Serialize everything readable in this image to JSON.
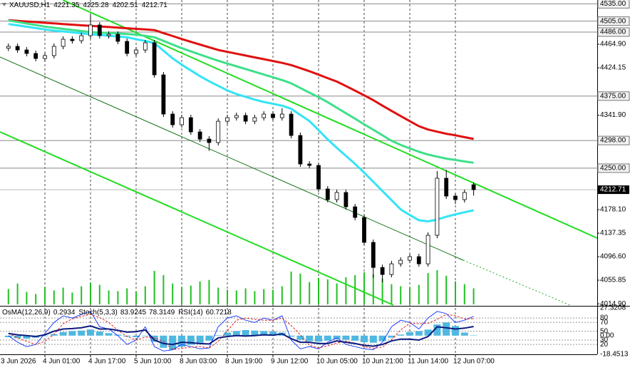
{
  "chart_data": {
    "type": "candlestick",
    "symbol": "XAUUSD,H1",
    "categories": [
      "3 Jun 2026",
      null,
      null,
      null,
      "4 Jun 01:00",
      null,
      null,
      null,
      null,
      "4 Jun 17:00",
      null,
      null,
      null,
      null,
      "5 Jun 10:00",
      null,
      null,
      null,
      null,
      "8 Jun 03:00",
      null,
      null,
      null,
      null,
      "8 Jun 19:00",
      null,
      null,
      null,
      null,
      "9 Jun 12:00",
      null,
      null,
      null,
      null,
      "10 Jun 05:00",
      null,
      null,
      null,
      null,
      "10 Jun 21:00",
      null,
      null,
      null,
      null,
      "11 Jun 14:00",
      null,
      null,
      null,
      null,
      "12 Jun 07:00",
      null,
      null
    ],
    "open": [
      4458.0,
      4461.2,
      4455.0,
      4448.9,
      4440.2,
      4445.2,
      4461.2,
      4473.6,
      4471.1,
      4479.8,
      4498.3,
      4479.8,
      4482.2,
      4469.9,
      4448.9,
      4455.0,
      4467.4,
      4411.8,
      4343.8,
      4325.3,
      4337.6,
      4312.9,
      4300.5,
      4294.4,
      4331.4,
      4337.6,
      4341.4,
      4331.4,
      4337.6,
      4343.8,
      4337.6,
      4343.8,
      4306.7,
      4257.3,
      4254.8,
      4214.0,
      4195.5,
      4207.9,
      4183.1,
      4164.6,
      4121.4,
      4077.9,
      4065.7,
      4084.2,
      4090.4,
      4096.6,
      4084.2,
      4133.7,
      4232.6,
      4201.7,
      4195.5,
      4221.35
    ],
    "high": [
      4466.2,
      4466.2,
      4460.0,
      4453.9,
      4450.2,
      4466.2,
      4478.6,
      4478.6,
      4484.8,
      4516.0,
      4503.3,
      4487.2,
      4487.2,
      4474.9,
      4460.0,
      4472.4,
      4472.4,
      4416.8,
      4348.8,
      4342.6,
      4342.6,
      4317.9,
      4305.5,
      4336.4,
      4342.6,
      4346.4,
      4346.4,
      4342.6,
      4348.8,
      4348.8,
      4354.0,
      4348.8,
      4311.7,
      4262.3,
      4259.8,
      4219.0,
      4212.9,
      4212.9,
      4188.1,
      4169.6,
      4126.4,
      4082.9,
      4089.2,
      4095.4,
      4101.6,
      4101.6,
      4138.7,
      4245.0,
      4247.0,
      4206.7,
      4212.9,
      4225.28
    ],
    "low": [
      4453.0,
      4450.0,
      4443.9,
      4435.2,
      4435.2,
      4440.2,
      4456.2,
      4466.1,
      4466.1,
      4474.8,
      4474.8,
      4474.8,
      4464.9,
      4443.9,
      4443.9,
      4450.0,
      4406.8,
      4338.8,
      4320.3,
      4320.3,
      4307.9,
      4295.5,
      4280.0,
      4289.4,
      4326.4,
      4332.6,
      4326.4,
      4326.4,
      4332.6,
      4332.6,
      4332.6,
      4301.7,
      4252.3,
      4249.8,
      4209.0,
      4190.5,
      4190.5,
      4178.1,
      4159.6,
      4116.4,
      4060.0,
      4052.0,
      4060.7,
      4079.2,
      4085.4,
      4079.2,
      4079.2,
      4128.7,
      4196.7,
      4188.0,
      4190.5,
      4202.51
    ],
    "close": [
      4461.2,
      4455.0,
      4448.9,
      4440.2,
      4445.2,
      4461.2,
      4473.6,
      4471.1,
      4479.8,
      4498.3,
      4479.8,
      4482.2,
      4469.9,
      4448.9,
      4455.0,
      4467.4,
      4411.8,
      4343.8,
      4325.3,
      4337.6,
      4312.9,
      4300.5,
      4294.4,
      4331.4,
      4337.6,
      4341.4,
      4331.4,
      4337.6,
      4343.8,
      4337.6,
      4343.8,
      4306.7,
      4257.3,
      4254.8,
      4214.0,
      4195.5,
      4207.9,
      4183.1,
      4164.6,
      4121.4,
      4077.9,
      4065.7,
      4084.2,
      4090.4,
      4096.6,
      4084.2,
      4133.7,
      4232.6,
      4201.7,
      4195.5,
      4207.9,
      4212.71
    ],
    "ylim": [
      4012.6,
      4541.6
    ],
    "yticks": [
      {
        "value": 4464.9,
        "label": "4464.90"
      },
      4424.15,
      {
        "value": 4341.9,
        "label": "4341.90"
      },
      {
        "value": 4178.1,
        "label": "4178.10"
      },
      4137.35,
      {
        "value": 4096.6,
        "label": "4096.60"
      },
      4055.85,
      {
        "value": 4014.9,
        "label": "4014.90"
      }
    ],
    "levels": [
      {
        "value": 4535,
        "label": "4535.00"
      },
      {
        "value": 4505,
        "label": "4505.00"
      },
      {
        "value": 4486,
        "label": "4486.00"
      },
      {
        "value": 4375,
        "label": "4375.00"
      },
      {
        "value": 4298,
        "label": "4298.00"
      },
      {
        "value": 4250,
        "label": "4250.00"
      }
    ],
    "grid": true,
    "moving_averages": [
      {
        "color": "#e01010",
        "values": [
          4506.6,
          4505.5,
          4504.4,
          4503.3,
          4502.1,
          4501.0,
          4499.9,
          4498.8,
          4497.7,
          4496.7,
          4495.7,
          4494.7,
          4493.7,
          4492.6,
          4491.6,
          4490.7,
          4489.5,
          4484.3,
          4479.2,
          4474.0,
          4469.1,
          4464.3,
          4459.6,
          4454.9,
          4451.7,
          4448.5,
          4445.3,
          4442.1,
          4439.0,
          4435.8,
          4432.6,
          4428.7,
          4423.4,
          4418.1,
          4412.2,
          4406.1,
          4400.2,
          4392.4,
          4384.5,
          4376.4,
          4367.9,
          4358.4,
          4349.3,
          4340.4,
          4331.6,
          4322.8,
          4317.0,
          4313.3,
          4309.7,
          4307.0,
          4303.8,
          4300.7
        ]
      },
      {
        "color": "#3de08a",
        "values": [
          4506.1,
          4503.5,
          4500.8,
          4498.2,
          4495.5,
          4493.4,
          4491.5,
          4489.7,
          4487.8,
          4486.0,
          4485.1,
          4484.3,
          4483.6,
          4482.7,
          4481.5,
          4479.4,
          4477.1,
          4470.8,
          4464.3,
          4458.0,
          4452.5,
          4447.0,
          4441.6,
          4436.3,
          4431.4,
          4426.6,
          4421.9,
          4417.1,
          4412.3,
          4407.6,
          4402.8,
          4397.1,
          4389.1,
          4381.0,
          4373.1,
          4364.5,
          4354.9,
          4345.3,
          4335.8,
          4326.1,
          4316.6,
          4307.1,
          4297.5,
          4290.3,
          4284.4,
          4278.4,
          4273.7,
          4270.0,
          4266.6,
          4264.2,
          4261.7,
          4259.4
        ]
      },
      {
        "color": "#33e4f6",
        "values": [
          4500.0,
          4497.7,
          4495.2,
          4492.9,
          4490.5,
          4488.4,
          4487.1,
          4485.5,
          4483.9,
          4482.2,
          4481.0,
          4479.7,
          4478.4,
          4476.9,
          4473.6,
          4470.5,
          4467.0,
          4453.7,
          4440.5,
          4429.5,
          4419.5,
          4409.6,
          4400.8,
          4392.8,
          4384.9,
          4378.4,
          4373.7,
          4368.9,
          4364.8,
          4361.6,
          4358.4,
          4353.0,
          4342.3,
          4331.7,
          4315.9,
          4299.9,
          4285.2,
          4271.4,
          4257.4,
          4242.3,
          4226.4,
          4210.5,
          4194.5,
          4178.6,
          4168.8,
          4159.8,
          4157.8,
          4160.9,
          4165.8,
          4170.0,
          4173.7,
          4177.0
        ]
      }
    ],
    "volume": {
      "color": "#22c022",
      "values": [
        2200,
        3000,
        1800,
        1500,
        2500,
        2000,
        2400,
        1700,
        2600,
        3100,
        2800,
        2000,
        1900,
        2300,
        1800,
        2600,
        4800,
        4200,
        3000,
        2500,
        2700,
        3300,
        3500,
        2400,
        2100,
        2000,
        2300,
        1900,
        2200,
        2100,
        2600,
        4700,
        4400,
        3200,
        3800,
        3600,
        3000,
        3900,
        4200,
        4600,
        4300,
        3700,
        2900,
        2600,
        2400,
        2800,
        4500,
        4900,
        4100,
        3300,
        2900,
        2300
      ]
    },
    "indicator": {
      "ylim": [
        -18.4513,
        27.3208
      ],
      "yticks": [
        27.3208,
        {
          "value": 0,
          "label": "0.00"
        },
        -18.4513
      ],
      "y2lim": [
        -2.4,
        102.8
      ],
      "y2ticks": [
        80,
        70,
        50,
        30,
        20
      ],
      "series": [
        {
          "name": "OsMA(12,26,9)",
          "type": "bar",
          "color": "#4fb8e0",
          "values": [
            -1.5,
            -2.5,
            -3.0,
            -2.0,
            -0.5,
            1.5,
            3.5,
            4.5,
            5.0,
            6.0,
            4.0,
            2.5,
            1.0,
            -1.0,
            -1.5,
            -0.5,
            -6.0,
            -12.0,
            -14.0,
            -11.0,
            -9.0,
            -7.0,
            -5.0,
            0.5,
            3.0,
            4.5,
            5.5,
            5.0,
            4.5,
            4.0,
            3.0,
            -1.0,
            -4.0,
            -5.5,
            -6.0,
            -5.0,
            -3.5,
            -4.0,
            -5.0,
            -6.5,
            -7.0,
            -5.5,
            -2.0,
            1.0,
            3.5,
            4.5,
            6.0,
            11.0,
            13.0,
            9.5,
            3.0,
            0.2934
          ]
        },
        {
          "name": "Stoch(5,3,3)",
          "type": "line",
          "axis": "y2",
          "color": "#2040ff",
          "values": [
            40,
            25,
            15,
            20,
            45,
            70,
            85,
            80,
            88,
            95,
            60,
            55,
            40,
            20,
            30,
            60,
            15,
            5,
            8,
            20,
            15,
            10,
            12,
            60,
            80,
            85,
            75,
            70,
            80,
            75,
            85,
            30,
            10,
            15,
            10,
            25,
            35,
            20,
            15,
            10,
            8,
            25,
            60,
            75,
            70,
            55,
            80,
            95,
            90,
            70,
            75,
            83.9245
          ]
        },
        {
          "type": "line",
          "axis": "y2",
          "color": "#e02020",
          "dashed": true,
          "values": [
            45,
            35,
            27,
            20,
            27,
            43,
            67,
            78,
            84,
            88,
            81,
            70,
            52,
            38,
            30,
            37,
            35,
            27,
            9,
            11,
            14,
            15,
            12,
            27,
            51,
            75,
            80,
            77,
            75,
            75,
            80,
            63,
            42,
            18,
            12,
            17,
            23,
            27,
            23,
            15,
            11,
            14,
            31,
            53,
            68,
            67,
            68,
            77,
            88,
            85,
            78,
            78.3149
          ]
        },
        {
          "name": "RSI(14)",
          "type": "line",
          "axis": "y2",
          "color": "#0d1a7e",
          "width": 2,
          "values": [
            45,
            42,
            40,
            38,
            42,
            50,
            55,
            56,
            58,
            62,
            55,
            55,
            52,
            48,
            49,
            53,
            30,
            22,
            20,
            25,
            24,
            22,
            21,
            35,
            38,
            40,
            39,
            40,
            42,
            41,
            44,
            33,
            25,
            25,
            22,
            22,
            28,
            25,
            22,
            18,
            16,
            20,
            28,
            32,
            32,
            30,
            38,
            60,
            58,
            55,
            57,
            60.7218
          ]
        }
      ]
    }
  }
}
